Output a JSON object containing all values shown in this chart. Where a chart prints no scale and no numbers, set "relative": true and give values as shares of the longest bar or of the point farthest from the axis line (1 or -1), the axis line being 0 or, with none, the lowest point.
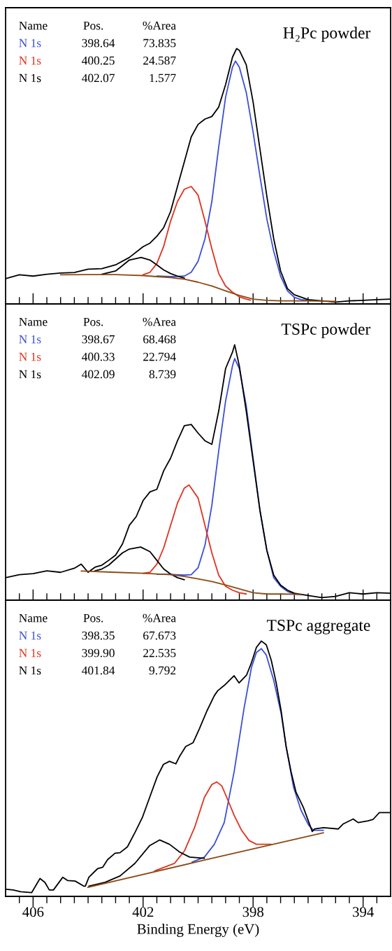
{
  "chart_data": [
    {
      "type": "line",
      "title": "H₂Pc powder",
      "relative": true,
      "xlim": [
        407,
        393
      ],
      "tick_labels": false,
      "xticks": [
        {
          "value": 406.5,
          "label": null
        },
        406,
        {
          "value": 405.5,
          "label": null
        },
        {
          "value": 405,
          "label": null
        },
        {
          "value": 404.5,
          "label": null
        },
        {
          "value": 404,
          "label": null
        },
        {
          "value": 403.5,
          "label": null
        },
        {
          "value": 403,
          "label": null
        },
        {
          "value": 402.5,
          "label": null
        },
        402,
        {
          "value": 401.5,
          "label": null
        },
        {
          "value": 401,
          "label": null
        },
        {
          "value": 400.5,
          "label": null
        },
        {
          "value": 400,
          "label": null
        },
        {
          "value": 399.5,
          "label": null
        },
        {
          "value": 399,
          "label": null
        },
        {
          "value": 398.5,
          "label": null
        },
        398,
        {
          "value": 397.5,
          "label": null
        },
        {
          "value": 397,
          "label": null
        },
        {
          "value": 396.5,
          "label": null
        },
        {
          "value": 396,
          "label": null
        },
        {
          "value": 395.5,
          "label": null
        },
        {
          "value": 395,
          "label": null
        },
        {
          "value": 394.5,
          "label": null
        },
        394,
        {
          "value": 393.5,
          "label": null
        }
      ],
      "annotations": [
        "Name",
        "Pos.",
        "%Area",
        "398.64",
        "73.835",
        "400.25",
        "24.587",
        "402.07",
        "1.577"
      ],
      "series": [
        {
          "name": "N 1s",
          "color": "#3b4fd6",
          "x": [
            401.5,
            401,
            400.5,
            400.25,
            400,
            399.75,
            399.5,
            399.25,
            399,
            398.75,
            398.64,
            398.5,
            398.25,
            398,
            397.75,
            397.5,
            397.25,
            397,
            396.75,
            396.5,
            396.25,
            396
          ],
          "values": [
            0.109,
            0.107,
            0.109,
            0.124,
            0.167,
            0.255,
            0.401,
            0.615,
            0.81,
            0.927,
            0.951,
            0.927,
            0.829,
            0.673,
            0.499,
            0.333,
            0.206,
            0.109,
            0.051,
            0.026,
            0.017,
            0.014
          ]
        },
        {
          "name": "N 1s",
          "color": "#e0321e",
          "x": [
            402,
            401.75,
            401.5,
            401.25,
            401,
            400.75,
            400.5,
            400.25,
            400,
            399.75,
            399.5,
            399.25,
            399,
            398.75,
            398.5,
            398.25,
            398.1
          ],
          "values": [
            0.114,
            0.124,
            0.158,
            0.226,
            0.324,
            0.401,
            0.449,
            0.46,
            0.426,
            0.324,
            0.216,
            0.119,
            0.07,
            0.046,
            0.028,
            0.019,
            0.015
          ]
        },
        {
          "name": "N 1s",
          "color": "#000000",
          "x": [
            403.5,
            403,
            402.75,
            402.5,
            402.07,
            401.75,
            401.5,
            401.25,
            401,
            400.75,
            400.5
          ],
          "values": [
            0.116,
            0.129,
            0.15,
            0.172,
            0.182,
            0.172,
            0.153,
            0.133,
            0.119,
            0.109,
            0.101
          ]
        },
        {
          "color": "#000000",
          "x": [
            407,
            406.5,
            406,
            405.5,
            405,
            404.5,
            404,
            403.5,
            403,
            402.5,
            402,
            401.75,
            401.5,
            401.25,
            401,
            400.75,
            400.5,
            400.25,
            400,
            399.75,
            399.5,
            399.25,
            399,
            398.75,
            398.6,
            398.5,
            398.25,
            398,
            397.75,
            397.5,
            397.25,
            397,
            396.75,
            396.5,
            396,
            395.5,
            395,
            394.5,
            394,
            393.5,
            393
          ],
          "values": [
            0.099,
            0.114,
            0.109,
            0.116,
            0.121,
            0.123,
            0.136,
            0.138,
            0.153,
            0.182,
            0.224,
            0.238,
            0.265,
            0.299,
            0.362,
            0.46,
            0.557,
            0.654,
            0.703,
            0.724,
            0.734,
            0.771,
            0.859,
            0.966,
            1.0,
            0.993,
            0.937,
            0.791,
            0.606,
            0.421,
            0.255,
            0.129,
            0.06,
            0.036,
            0.017,
            0.012,
            0.007,
            0.012,
            0.014,
            0.017,
            0.019
          ]
        },
        {
          "color": "#8b4a14",
          "x": [
            405,
            404,
            403,
            402.5,
            402,
            401.5,
            401,
            400.5,
            400,
            399.5,
            399,
            398.5,
            398,
            397.5,
            397,
            396,
            395
          ],
          "values": [
            0.114,
            0.115,
            0.115,
            0.113,
            0.111,
            0.107,
            0.103,
            0.097,
            0.085,
            0.07,
            0.051,
            0.033,
            0.019,
            0.014,
            0.012,
            0.012,
            0.01
          ]
        }
      ]
    },
    {
      "type": "line",
      "title": "TSPc powder",
      "relative": true,
      "xlim": [
        407,
        393
      ],
      "tick_labels": false,
      "xticks": [
        {
          "value": 406.5,
          "label": null
        },
        406,
        {
          "value": 405.5,
          "label": null
        },
        {
          "value": 405,
          "label": null
        },
        {
          "value": 404.5,
          "label": null
        },
        {
          "value": 404,
          "label": null
        },
        {
          "value": 403.5,
          "label": null
        },
        {
          "value": 403,
          "label": null
        },
        {
          "value": 402.5,
          "label": null
        },
        402,
        {
          "value": 401.5,
          "label": null
        },
        {
          "value": 401,
          "label": null
        },
        {
          "value": 400.5,
          "label": null
        },
        {
          "value": 400,
          "label": null
        },
        {
          "value": 399.5,
          "label": null
        },
        {
          "value": 399,
          "label": null
        },
        {
          "value": 398.5,
          "label": null
        },
        398,
        {
          "value": 397.5,
          "label": null
        },
        {
          "value": 397,
          "label": null
        },
        {
          "value": 396.5,
          "label": null
        },
        {
          "value": 396,
          "label": null
        },
        {
          "value": 395.5,
          "label": null
        },
        {
          "value": 395,
          "label": null
        },
        {
          "value": 394.5,
          "label": null
        },
        394,
        {
          "value": 393.5,
          "label": null
        }
      ],
      "annotations": [
        "Name",
        "Pos.",
        "%Area",
        "398.67",
        "68.468",
        "400.33",
        "22.794",
        "402.09",
        "8.739"
      ],
      "series": [
        {
          "name": "N 1s",
          "color": "#3b4fd6",
          "x": [
            401.5,
            401,
            400.5,
            400.25,
            400,
            399.75,
            399.5,
            399.25,
            399,
            398.75,
            398.67,
            398.5,
            398.25,
            398,
            397.75,
            397.5,
            397.25,
            397,
            396.75,
            396.5,
            396.25
          ],
          "values": [
            0.102,
            0.101,
            0.098,
            0.1,
            0.127,
            0.215,
            0.371,
            0.585,
            0.78,
            0.917,
            0.946,
            0.907,
            0.761,
            0.556,
            0.351,
            0.195,
            0.088,
            0.054,
            0.034,
            0.024,
            0.021
          ]
        },
        {
          "name": "N 1s",
          "color": "#e0321e",
          "x": [
            402,
            401.75,
            401.5,
            401.25,
            401,
            400.75,
            400.5,
            400.33,
            400,
            399.75,
            399.5,
            399.25,
            399,
            398.75,
            398.5,
            398.25
          ],
          "values": [
            0.105,
            0.109,
            0.141,
            0.205,
            0.293,
            0.38,
            0.439,
            0.451,
            0.4,
            0.293,
            0.185,
            0.098,
            0.054,
            0.039,
            0.029,
            0.024
          ]
        },
        {
          "name": "N 1s",
          "color": "#000000",
          "x": [
            403.75,
            403.5,
            403.25,
            403,
            402.75,
            402.5,
            402.09,
            401.75,
            401.5,
            401.25,
            401,
            400.75,
            400.5
          ],
          "values": [
            0.115,
            0.122,
            0.137,
            0.161,
            0.185,
            0.2,
            0.208,
            0.19,
            0.156,
            0.122,
            0.102,
            0.088,
            0.08
          ]
        },
        {
          "color": "#000000",
          "x": [
            407,
            406.5,
            406,
            405.5,
            405,
            404.5,
            404.25,
            404,
            403.75,
            403.5,
            403.25,
            403,
            402.75,
            402.5,
            402.25,
            402,
            401.75,
            401.5,
            401.25,
            401,
            400.75,
            400.5,
            400.25,
            400,
            399.75,
            399.5,
            399.25,
            399,
            398.75,
            398.67,
            398.5,
            398.25,
            398,
            397.75,
            397.5,
            397.25,
            397,
            396.75,
            396.5,
            396,
            395.5,
            395,
            394.5,
            394,
            393.5,
            393
          ],
          "values": [
            0.088,
            0.1,
            0.104,
            0.115,
            0.109,
            0.125,
            0.141,
            0.109,
            0.129,
            0.137,
            0.156,
            0.176,
            0.22,
            0.293,
            0.327,
            0.39,
            0.424,
            0.434,
            0.507,
            0.556,
            0.624,
            0.683,
            0.688,
            0.654,
            0.624,
            0.61,
            0.741,
            0.907,
            0.971,
            1.0,
            0.917,
            0.741,
            0.546,
            0.351,
            0.195,
            0.098,
            0.059,
            0.039,
            0.027,
            0.018,
            0.01,
            0.015,
            0.029,
            0.024,
            0.029,
            0.027
          ]
        },
        {
          "color": "#8b4a14",
          "x": [
            404.25,
            403,
            402,
            401,
            400.5,
            400,
            399.5,
            399,
            398.5,
            398,
            397.5,
            397,
            396.25
          ],
          "values": [
            0.114,
            0.109,
            0.105,
            0.1,
            0.093,
            0.083,
            0.073,
            0.059,
            0.044,
            0.029,
            0.024,
            0.024,
            0.023
          ]
        }
      ]
    },
    {
      "type": "line",
      "title": "TSPc aggregate",
      "xlabel": "Binding Energy (eV)",
      "relative": true,
      "xlim": [
        407,
        393
      ],
      "tick_labels": "x",
      "xticks": [
        {
          "value": 406.5,
          "label": null
        },
        406,
        {
          "value": 405.5,
          "label": null
        },
        {
          "value": 405,
          "label": null
        },
        {
          "value": 404.5,
          "label": null
        },
        {
          "value": 404,
          "label": null
        },
        {
          "value": 403.5,
          "label": null
        },
        {
          "value": 403,
          "label": null
        },
        {
          "value": 402.5,
          "label": null
        },
        402,
        {
          "value": 401.5,
          "label": null
        },
        {
          "value": 401,
          "label": null
        },
        {
          "value": 400.5,
          "label": null
        },
        {
          "value": 400,
          "label": null
        },
        {
          "value": 399.5,
          "label": null
        },
        {
          "value": 399,
          "label": null
        },
        {
          "value": 398.5,
          "label": null
        },
        398,
        {
          "value": 397.5,
          "label": null
        },
        {
          "value": 397,
          "label": null
        },
        {
          "value": 396.5,
          "label": null
        },
        {
          "value": 396,
          "label": null
        },
        {
          "value": 395.5,
          "label": null
        },
        {
          "value": 395,
          "label": null
        },
        {
          "value": 394.5,
          "label": null
        },
        394,
        {
          "value": 393.5,
          "label": null
        }
      ],
      "annotations": [
        "Name",
        "Pos.",
        "%Area",
        "398.35",
        "67.673",
        "399.90",
        "22.535",
        "401.84",
        "9.792"
      ],
      "series": [
        {
          "name": "N 1s",
          "color": "#3b4fd6",
          "x": [
            400.22,
            399.77,
            399.41,
            399.05,
            398.69,
            398.33,
            398.06,
            397.88,
            397.7,
            397.52,
            397.25,
            396.98,
            396.8,
            396.53,
            396.26,
            395.98,
            395.8,
            395.44
          ],
          "values": [
            0.134,
            0.154,
            0.204,
            0.289,
            0.488,
            0.736,
            0.896,
            0.955,
            0.97,
            0.945,
            0.846,
            0.716,
            0.587,
            0.428,
            0.338,
            0.279,
            0.259,
            0.259
          ]
        },
        {
          "name": "N 1s",
          "color": "#e0321e",
          "x": [
            401.58,
            400.86,
            400.49,
            400.13,
            399.77,
            399.5,
            399.32,
            399.14,
            398.96,
            398.69,
            398.42,
            398.15,
            397.88,
            397.34
          ],
          "values": [
            0.1,
            0.129,
            0.179,
            0.269,
            0.388,
            0.438,
            0.448,
            0.433,
            0.388,
            0.318,
            0.259,
            0.219,
            0.204,
            0.204
          ]
        },
        {
          "name": "N 1s",
          "color": "#000000",
          "x": [
            403.97,
            403.38,
            402.84,
            402.3,
            401.76,
            401.4,
            401.04,
            400.68,
            400.31,
            399.77
          ],
          "values": [
            0.04,
            0.055,
            0.08,
            0.129,
            0.199,
            0.221,
            0.204,
            0.174,
            0.154,
            0.149
          ]
        },
        {
          "color": "#000000",
          "x": [
            406.97,
            406.72,
            406.45,
            406.05,
            405.75,
            405.57,
            405.41,
            405.26,
            404.92,
            404.74,
            404.47,
            404.15,
            404.1,
            403.97,
            403.65,
            403.47,
            403.29,
            403.02,
            402.84,
            402.57,
            402.3,
            402.03,
            401.76,
            401.49,
            401.26,
            401.04,
            400.81,
            400.68,
            400.45,
            400.18,
            399.95,
            399.68,
            399.41,
            399.28,
            399.05,
            398.69,
            398.51,
            398.24,
            398.06,
            397.88,
            397.7,
            397.52,
            397.34,
            397.16,
            396.98,
            396.8,
            396.62,
            396.44,
            396.17,
            395.85,
            395.76,
            395.44,
            394.9,
            394.72,
            394.36,
            394.18,
            393.82,
            393.64,
            393.41,
            393.02
          ],
          "values": [
            0.028,
            0.025,
            0.018,
            0.015,
            0.07,
            0.055,
            0.025,
            0.025,
            0.075,
            0.062,
            0.06,
            0.04,
            0.04,
            0.075,
            0.109,
            0.114,
            0.144,
            0.169,
            0.171,
            0.194,
            0.249,
            0.308,
            0.388,
            0.468,
            0.517,
            0.529,
            0.519,
            0.547,
            0.587,
            0.602,
            0.657,
            0.726,
            0.786,
            0.806,
            0.826,
            0.864,
            0.836,
            0.866,
            0.915,
            0.975,
            1.0,
            0.985,
            0.925,
            0.836,
            0.726,
            0.587,
            0.488,
            0.408,
            0.348,
            0.254,
            0.264,
            0.269,
            0.264,
            0.284,
            0.303,
            0.289,
            0.296,
            0.301,
            0.328,
            0.328
          ]
        },
        {
          "color": "#8b4a14",
          "x": [
            404.01,
            399.77,
            395.44
          ],
          "values": [
            0.035,
            0.142,
            0.249
          ]
        }
      ]
    }
  ]
}
